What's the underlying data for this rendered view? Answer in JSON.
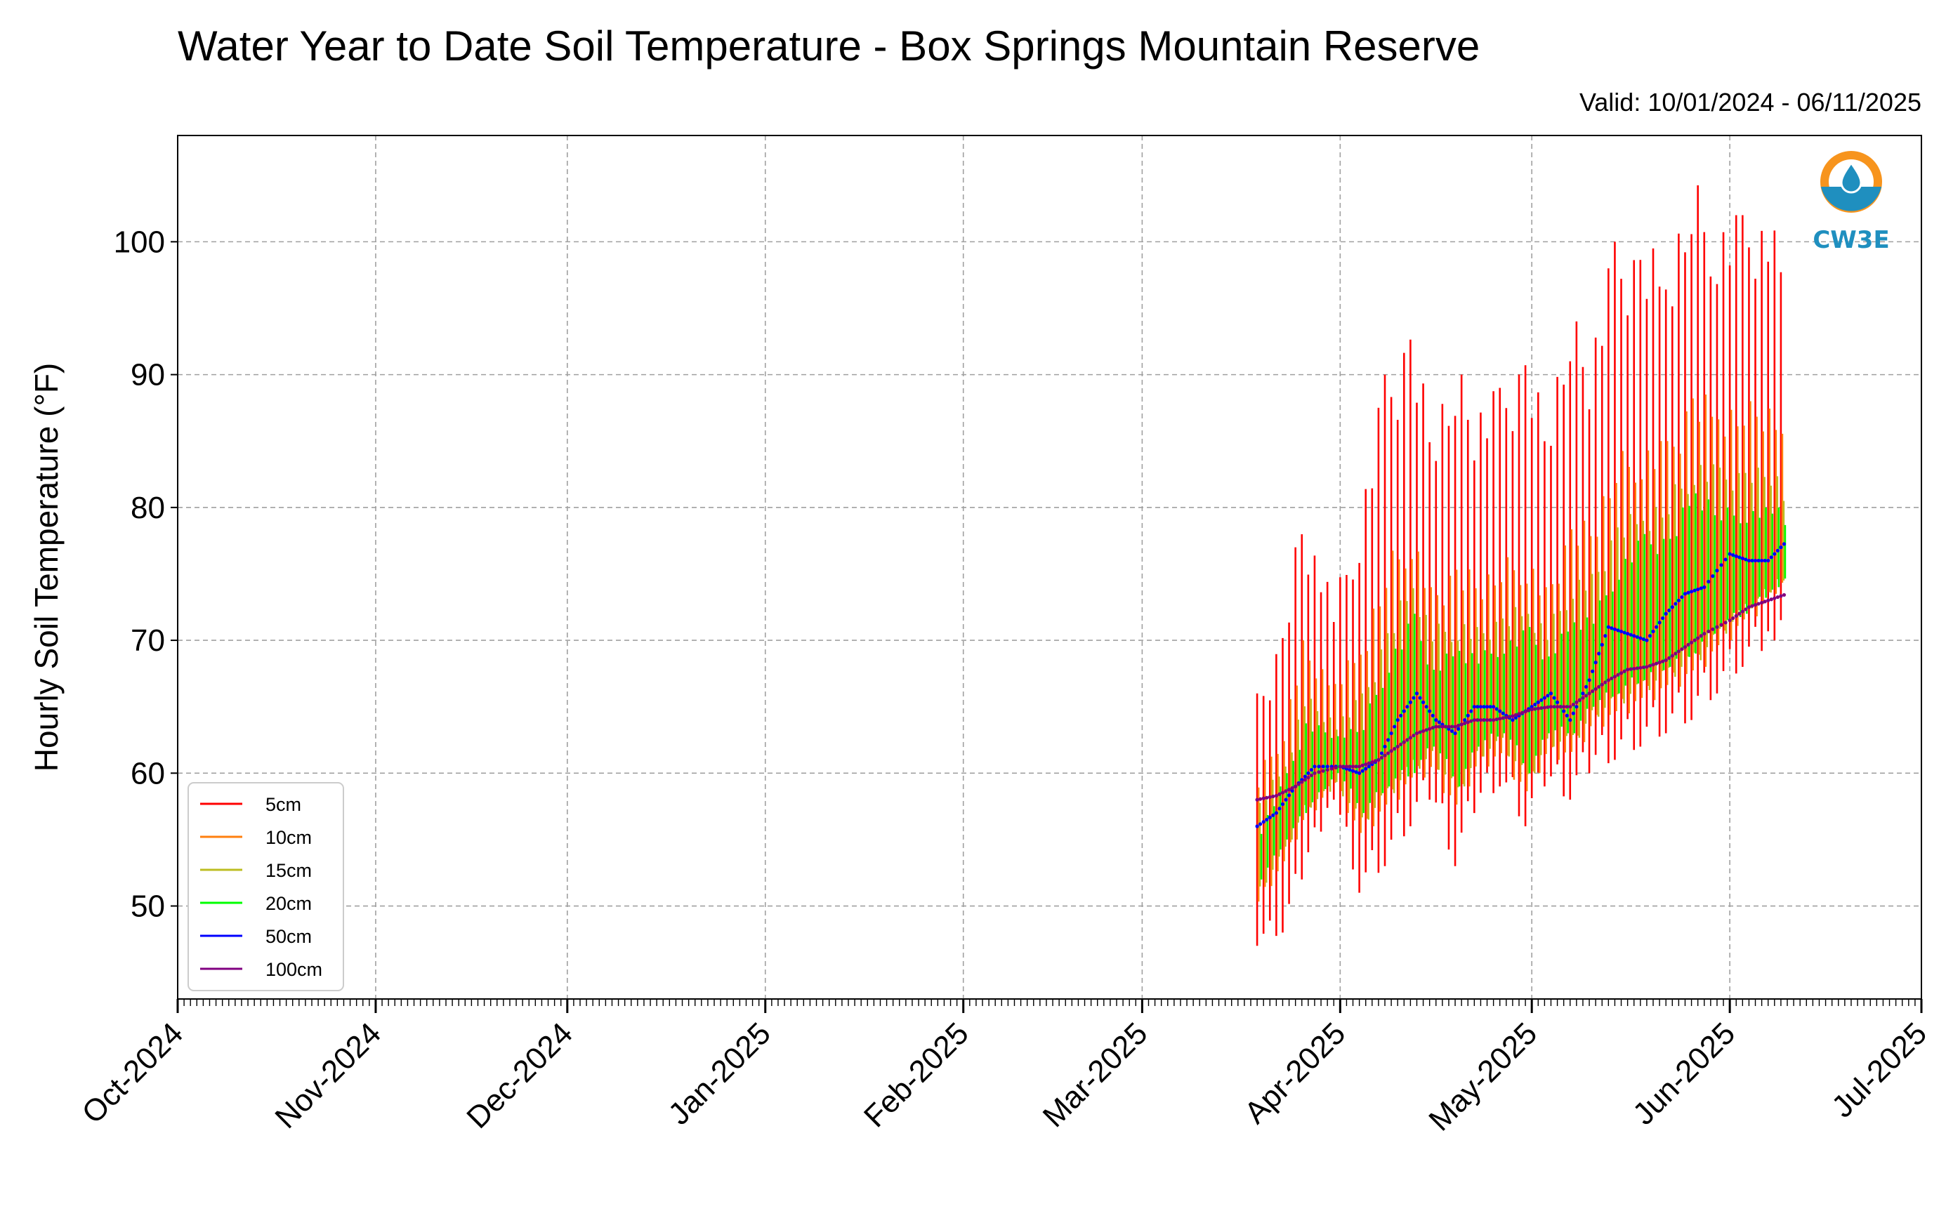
{
  "chart_data": {
    "type": "line",
    "title": "Water Year to Date Soil Temperature - Box Springs Mountain Reserve",
    "subtitle": "Valid: 10/01/2024 - 06/11/2025",
    "xlabel": "",
    "ylabel": "Hourly Soil Temperature (°F)",
    "ylim": [
      43,
      108
    ],
    "yticks": [
      50,
      60,
      70,
      80,
      90,
      100
    ],
    "xlim": [
      "2024-10-01",
      "2025-07-01"
    ],
    "xticks": [
      {
        "date": "2024-10-01",
        "label": "Oct-2024"
      },
      {
        "date": "2024-11-01",
        "label": "Nov-2024"
      },
      {
        "date": "2024-12-01",
        "label": "Dec-2024"
      },
      {
        "date": "2025-01-01",
        "label": "Jan-2025"
      },
      {
        "date": "2025-02-01",
        "label": "Feb-2025"
      },
      {
        "date": "2025-03-01",
        "label": "Mar-2025"
      },
      {
        "date": "2025-04-01",
        "label": "Apr-2025"
      },
      {
        "date": "2025-05-01",
        "label": "May-2025"
      },
      {
        "date": "2025-06-01",
        "label": "Jun-2025"
      },
      {
        "date": "2025-07-01",
        "label": "Jul-2025"
      }
    ],
    "grid": true,
    "legend_position": "lower-left",
    "logo_text": "CW3E",
    "series": [
      {
        "name": "5cm",
        "color": "#ff0000",
        "style": "daily-range",
        "dates": [
          "2025-03-19",
          "2025-03-23",
          "2025-03-26",
          "2025-03-31",
          "2025-04-04",
          "2025-04-08",
          "2025-04-12",
          "2025-04-15",
          "2025-04-19",
          "2025-04-22",
          "2025-04-26",
          "2025-04-30",
          "2025-05-03",
          "2025-05-07",
          "2025-05-10",
          "2025-05-14",
          "2025-05-18",
          "2025-05-22",
          "2025-05-26",
          "2025-05-30",
          "2025-06-03",
          "2025-06-08",
          "2025-06-10"
        ],
        "min": [
          47,
          48,
          52,
          58,
          51,
          53,
          56,
          58,
          53,
          57,
          59,
          56,
          59,
          58,
          60,
          61,
          62,
          63,
          64,
          66,
          68,
          70,
          71
        ],
        "max": [
          66,
          71,
          80,
          73,
          80,
          90,
          94,
          87,
          91,
          88,
          89,
          92,
          87,
          95,
          92,
          100,
          100,
          99,
          105,
          102,
          102,
          102,
          100
        ]
      },
      {
        "name": "10cm",
        "color": "#ff7f0e",
        "style": "daily-range",
        "dates": [
          "2025-03-19",
          "2025-03-23",
          "2025-03-26",
          "2025-03-31",
          "2025-04-04",
          "2025-04-08",
          "2025-04-12",
          "2025-04-15",
          "2025-04-19",
          "2025-04-22",
          "2025-04-26",
          "2025-04-30",
          "2025-05-03",
          "2025-05-07",
          "2025-05-10",
          "2025-05-14",
          "2025-05-18",
          "2025-05-22",
          "2025-05-26",
          "2025-05-30",
          "2025-06-03",
          "2025-06-08",
          "2025-06-10"
        ],
        "min": [
          50,
          53,
          56,
          59,
          55,
          57,
          59,
          60,
          57,
          60,
          61,
          58,
          61,
          61,
          63,
          64,
          65,
          66,
          67,
          69,
          71,
          73,
          74
        ],
        "max": [
          60,
          64,
          70,
          67,
          70,
          76,
          79,
          74,
          76,
          75,
          76,
          77,
          74,
          79,
          79,
          84,
          85,
          85,
          89,
          88,
          88,
          88,
          84
        ]
      },
      {
        "name": "15cm",
        "color": "#bcbd22",
        "style": "daily-range",
        "dates": [
          "2025-03-19",
          "2025-03-23",
          "2025-03-26",
          "2025-03-31",
          "2025-04-04",
          "2025-04-08",
          "2025-04-12",
          "2025-04-15",
          "2025-04-19",
          "2025-04-22",
          "2025-04-26",
          "2025-04-30",
          "2025-05-03",
          "2025-05-07",
          "2025-05-10",
          "2025-05-14",
          "2025-05-18",
          "2025-05-22",
          "2025-05-26",
          "2025-05-30",
          "2025-06-03",
          "2025-06-08",
          "2025-06-10"
        ],
        "min": [
          51,
          54,
          57,
          59,
          56,
          58,
          60,
          61,
          58,
          61,
          62,
          59,
          62,
          62,
          64,
          65,
          66,
          67,
          68,
          70,
          72,
          74,
          75
        ],
        "max": [
          58,
          61,
          66,
          64,
          66,
          71,
          75,
          71,
          72,
          71,
          72,
          73,
          71,
          75,
          75,
          79,
          80,
          81,
          84,
          83,
          83,
          83,
          80
        ]
      },
      {
        "name": "20cm",
        "color": "#00ff00",
        "style": "daily-range",
        "dates": [
          "2025-03-19",
          "2025-03-23",
          "2025-03-26",
          "2025-03-31",
          "2025-04-04",
          "2025-04-08",
          "2025-04-12",
          "2025-04-15",
          "2025-04-19",
          "2025-04-22",
          "2025-04-26",
          "2025-04-30",
          "2025-05-03",
          "2025-05-07",
          "2025-05-10",
          "2025-05-14",
          "2025-05-18",
          "2025-05-22",
          "2025-05-26",
          "2025-05-30",
          "2025-06-03",
          "2025-06-08",
          "2025-06-10"
        ],
        "min": [
          52,
          55,
          57,
          60,
          57,
          59,
          60,
          62,
          59,
          62,
          63,
          60,
          63,
          63,
          65,
          66,
          67,
          68,
          69,
          71,
          72,
          74,
          75
        ],
        "max": [
          56,
          60,
          64,
          63,
          64,
          69,
          72,
          68,
          70,
          69,
          70,
          71,
          69,
          72,
          72,
          76,
          78,
          78,
          82,
          80,
          80,
          80,
          78
        ]
      },
      {
        "name": "50cm",
        "color": "#0000ff",
        "style": "dotted",
        "x": [
          "2025-03-19",
          "2025-03-22",
          "2025-03-25",
          "2025-03-28",
          "2025-04-01",
          "2025-04-04",
          "2025-04-07",
          "2025-04-10",
          "2025-04-13",
          "2025-04-16",
          "2025-04-19",
          "2025-04-22",
          "2025-04-25",
          "2025-04-28",
          "2025-05-01",
          "2025-05-04",
          "2025-05-07",
          "2025-05-10",
          "2025-05-13",
          "2025-05-16",
          "2025-05-19",
          "2025-05-22",
          "2025-05-25",
          "2025-05-28",
          "2025-06-01",
          "2025-06-04",
          "2025-06-07",
          "2025-06-10"
        ],
        "y": [
          56,
          57,
          59,
          60.5,
          60.5,
          60,
          61,
          64,
          66,
          64,
          63,
          65,
          65,
          64,
          65,
          66,
          64,
          67,
          71,
          70.5,
          70,
          72,
          73.5,
          74,
          76.5,
          76,
          76,
          77.5
        ]
      },
      {
        "name": "100cm",
        "color": "#800080",
        "style": "dotted",
        "x": [
          "2025-03-19",
          "2025-03-22",
          "2025-03-25",
          "2025-03-28",
          "2025-04-01",
          "2025-04-04",
          "2025-04-07",
          "2025-04-10",
          "2025-04-13",
          "2025-04-16",
          "2025-04-19",
          "2025-04-22",
          "2025-04-25",
          "2025-04-28",
          "2025-05-01",
          "2025-05-04",
          "2025-05-07",
          "2025-05-10",
          "2025-05-13",
          "2025-05-16",
          "2025-05-19",
          "2025-05-22",
          "2025-05-25",
          "2025-05-28",
          "2025-06-01",
          "2025-06-04",
          "2025-06-07",
          "2025-06-10"
        ],
        "y": [
          58,
          58.3,
          59,
          60,
          60.5,
          60.5,
          61,
          62,
          63,
          63.5,
          63.5,
          64,
          64,
          64.3,
          64.8,
          65,
          65,
          66,
          67,
          67.8,
          68,
          68.5,
          69.5,
          70.5,
          71.5,
          72.5,
          73,
          73.5
        ]
      }
    ]
  }
}
